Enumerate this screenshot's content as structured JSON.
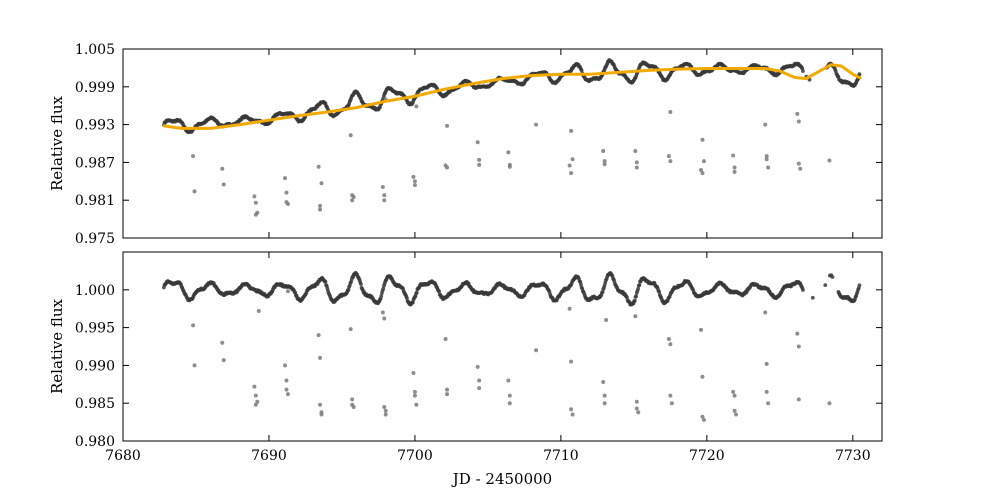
{
  "chart_data": [
    {
      "type": "scatter",
      "panel": "top",
      "title": "",
      "ylabel": "Relative flux",
      "xlabel": "",
      "xlim": [
        7680,
        7732
      ],
      "ylim": [
        0.975,
        1.005
      ],
      "xticks": [
        7680,
        7690,
        7700,
        7710,
        7720,
        7730
      ],
      "yticks": [
        0.975,
        0.981,
        0.987,
        0.993,
        0.999,
        1.005
      ],
      "ytick_labels": [
        "0.975",
        "0.981",
        "0.987",
        "0.993",
        "0.999",
        "1.005"
      ],
      "show_x_tick_labels": false,
      "grid": false,
      "colors": {
        "points": "#3a3a3a",
        "outliers": "#7a7a7a",
        "model": "#f2a900"
      },
      "series": [
        {
          "kind": "points",
          "x_range": [
            7682.8,
            7730.5
          ],
          "trend": [
            [
              7682.8,
              0.9927
            ],
            [
              7690,
              0.9938
            ],
            [
              7700,
              0.998
            ],
            [
              7710,
              1.001
            ],
            [
              7720,
              1.0018
            ],
            [
              7726,
              1.0018
            ],
            [
              7730.5,
              1.0003
            ]
          ],
          "oscillation_amplitude": 0.0013,
          "oscillation_period_days": 2.5,
          "gaps": [
            [
              7726.6,
              7728.2
            ]
          ]
        },
        {
          "kind": "outliers",
          "x": [
            7684.8,
            7684.9,
            7686.8,
            7686.9,
            7689.0,
            7689.1,
            7689.2,
            7689.1,
            7691.1,
            7691.2,
            7691.2,
            7691.3,
            7693.4,
            7693.5,
            7693.5,
            7693.6,
            7695.6,
            7695.7,
            7695.7,
            7695.8,
            7697.8,
            7697.9,
            7697.9,
            7698.0,
            7699.9,
            7700.0,
            7700.0,
            7700.1,
            7702.1,
            7702.2,
            7702.2,
            7704.3,
            7704.4,
            7704.4,
            7706.4,
            7706.5,
            7706.5,
            7708.3,
            7710.6,
            7710.7,
            7710.7,
            7710.8,
            7712.9,
            7713.0,
            7713.0,
            7715.1,
            7715.2,
            7715.2,
            7717.4,
            7717.5,
            7717.5,
            7719.6,
            7719.7,
            7719.7,
            7719.8,
            7721.8,
            7721.9,
            7721.9,
            7724.0,
            7724.1,
            7724.1,
            7724.2,
            7726.2,
            7726.3,
            7726.3,
            7726.4,
            7728.4
          ],
          "y": [
            0.988,
            0.9824,
            0.986,
            0.9835,
            0.9816,
            0.9806,
            0.979,
            0.9787,
            0.9845,
            0.9822,
            0.9807,
            0.9804,
            0.9863,
            0.9801,
            0.9795,
            0.9837,
            0.9913,
            0.9818,
            0.981,
            0.9815,
            0.9831,
            0.9818,
            0.981,
            0.997,
            0.9847,
            0.984,
            0.9834,
            0.9959,
            0.9865,
            0.9862,
            0.9928,
            0.9902,
            0.9874,
            0.9866,
            0.9886,
            0.9866,
            0.9863,
            0.993,
            0.9865,
            0.9853,
            0.992,
            0.9875,
            0.9888,
            0.9872,
            0.9867,
            0.9888,
            0.987,
            0.9862,
            0.988,
            0.9872,
            0.995,
            0.9858,
            0.9853,
            0.9906,
            0.9872,
            0.9881,
            0.9862,
            0.9855,
            0.993,
            0.988,
            0.9875,
            0.9862,
            0.9947,
            0.9935,
            0.9868,
            0.986,
            0.9873
          ]
        },
        {
          "kind": "model_line",
          "x": [
            7682.8,
            7684,
            7686,
            7688,
            7690,
            7692,
            7694,
            7696,
            7698,
            7700,
            7702,
            7704,
            7706,
            7708,
            7710,
            7712,
            7714,
            7716,
            7718,
            7720,
            7722,
            7724,
            7725,
            7726,
            7726.8,
            7727.5,
            7728.5,
            7729.2,
            7730.0,
            7730.5
          ],
          "y": [
            0.9928,
            0.9924,
            0.9924,
            0.993,
            0.9937,
            0.9944,
            0.995,
            0.9957,
            0.9967,
            0.9975,
            0.9986,
            0.9995,
            1.0003,
            1.0008,
            1.001,
            1.001,
            1.0013,
            1.0016,
            1.0018,
            1.0019,
            1.0019,
            1.0019,
            1.0015,
            1.0005,
            1.0003,
            1.0012,
            1.0025,
            1.0023,
            1.001,
            1.0004
          ]
        }
      ]
    },
    {
      "type": "scatter",
      "panel": "bottom",
      "title": "",
      "ylabel": "Relative flux",
      "xlabel": "JD - 2450000",
      "xlim": [
        7680,
        7732
      ],
      "ylim": [
        0.98,
        1.005
      ],
      "xticks": [
        7680,
        7690,
        7700,
        7710,
        7720,
        7730
      ],
      "xtick_labels": [
        "7680",
        "7690",
        "7700",
        "7710",
        "7720",
        "7730"
      ],
      "yticks": [
        0.98,
        0.985,
        0.99,
        0.995,
        1.0
      ],
      "ytick_labels": [
        "0.980",
        "0.985",
        "0.990",
        "0.995",
        "1.000"
      ],
      "show_x_tick_labels": true,
      "grid": false,
      "colors": {
        "points": "#3a3a3a",
        "outliers": "#7a7a7a"
      },
      "series": [
        {
          "kind": "points",
          "x_range": [
            7682.8,
            7730.5
          ],
          "baseline": 1.0,
          "oscillation_amplitude": 0.0015,
          "oscillation_period_days": 2.5,
          "gaps": [
            [
              7726.6,
              7729.0
            ]
          ]
        },
        {
          "kind": "outliers",
          "x": [
            7684.8,
            7684.9,
            7686.8,
            7686.9,
            7689.0,
            7689.1,
            7689.2,
            7689.1,
            7689.3,
            7691.1,
            7691.2,
            7691.2,
            7691.3,
            7691.3,
            7693.4,
            7693.5,
            7693.5,
            7693.6,
            7693.6,
            7695.6,
            7695.7,
            7695.7,
            7695.8,
            7697.8,
            7697.9,
            7697.9,
            7698.0,
            7698.0,
            7699.9,
            7700.0,
            7700.0,
            7700.1,
            7702.1,
            7702.2,
            7702.2,
            7704.3,
            7704.4,
            7704.4,
            7706.4,
            7706.5,
            7706.5,
            7708.3,
            7710.6,
            7710.7,
            7710.7,
            7710.8,
            7712.9,
            7713.0,
            7713.0,
            7713.1,
            7715.1,
            7715.2,
            7715.2,
            7715.3,
            7717.4,
            7717.5,
            7717.5,
            7717.6,
            7719.6,
            7719.7,
            7719.7,
            7719.8,
            7721.8,
            7721.9,
            7721.9,
            7722.0,
            7724.0,
            7724.1,
            7724.1,
            7724.2,
            7726.2,
            7726.3,
            7726.3,
            7728.4
          ],
          "y": [
            0.9953,
            0.99,
            0.993,
            0.9907,
            0.9872,
            0.986,
            0.9852,
            0.9848,
            0.9972,
            0.99,
            0.988,
            0.9868,
            0.9862,
            0.9998,
            0.994,
            0.991,
            0.9848,
            0.9838,
            0.9835,
            0.9948,
            0.9855,
            0.9848,
            0.9845,
            0.997,
            0.9962,
            0.9845,
            0.984,
            0.9835,
            0.989,
            0.9865,
            0.986,
            0.9848,
            0.9935,
            0.9868,
            0.9862,
            0.9898,
            0.988,
            0.987,
            0.988,
            0.986,
            0.985,
            0.992,
            0.9975,
            0.9905,
            0.9842,
            0.9835,
            0.9878,
            0.986,
            0.985,
            0.996,
            0.9965,
            0.9852,
            0.9843,
            0.9838,
            0.9935,
            0.9928,
            0.986,
            0.985,
            0.9947,
            0.9885,
            0.9832,
            0.9828,
            0.9865,
            0.986,
            0.984,
            0.9835,
            0.997,
            0.9902,
            0.9865,
            0.985,
            0.9942,
            0.9925,
            0.9855,
            0.985
          ]
        }
      ]
    }
  ]
}
